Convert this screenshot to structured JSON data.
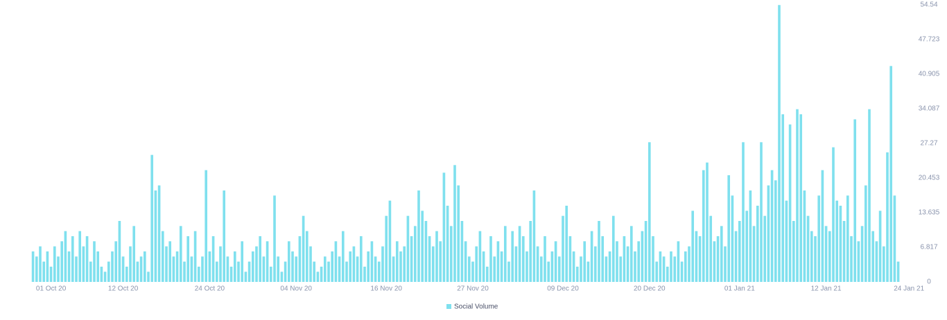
{
  "chart_data": {
    "type": "bar",
    "categories": [
      null,
      null,
      null,
      null,
      null,
      "01 Oct 20",
      null,
      null,
      null,
      null,
      null,
      null,
      null,
      null,
      null,
      null,
      null,
      null,
      null,
      null,
      null,
      null,
      null,
      null,
      null,
      "12 Oct 20",
      null,
      null,
      null,
      null,
      null,
      null,
      null,
      null,
      null,
      null,
      null,
      null,
      null,
      null,
      null,
      null,
      null,
      null,
      null,
      null,
      null,
      null,
      null,
      "24 Oct 20",
      null,
      null,
      null,
      null,
      null,
      null,
      null,
      null,
      null,
      null,
      null,
      null,
      null,
      null,
      null,
      null,
      null,
      null,
      null,
      null,
      null,
      null,
      null,
      "04 Nov 20",
      null,
      null,
      null,
      null,
      null,
      null,
      null,
      null,
      null,
      null,
      null,
      null,
      null,
      null,
      null,
      null,
      null,
      null,
      null,
      null,
      null,
      null,
      null,
      null,
      "16 Nov 20",
      null,
      null,
      null,
      null,
      null,
      null,
      null,
      null,
      null,
      null,
      null,
      null,
      null,
      null,
      null,
      null,
      null,
      null,
      null,
      null,
      null,
      null,
      null,
      "27 Nov 20",
      null,
      null,
      null,
      null,
      null,
      null,
      null,
      null,
      null,
      null,
      null,
      null,
      null,
      null,
      null,
      null,
      null,
      null,
      null,
      null,
      null,
      null,
      null,
      null,
      "09 Dec 20",
      null,
      null,
      null,
      null,
      null,
      null,
      null,
      null,
      null,
      null,
      null,
      null,
      null,
      null,
      null,
      null,
      null,
      null,
      null,
      null,
      null,
      null,
      null,
      "20 Dec 20",
      null,
      null,
      null,
      null,
      null,
      null,
      null,
      null,
      null,
      null,
      null,
      null,
      null,
      null,
      null,
      null,
      null,
      null,
      null,
      null,
      null,
      null,
      null,
      null,
      "01 Jan 21",
      null,
      null,
      null,
      null,
      null,
      null,
      null,
      null,
      null,
      null,
      null,
      null,
      null,
      null,
      null,
      null,
      null,
      null,
      null,
      null,
      null,
      null,
      null,
      "12 Jan 21",
      null,
      null,
      null,
      null,
      null,
      null,
      null,
      null,
      null,
      null,
      null,
      null,
      null,
      null,
      null,
      null,
      null,
      null,
      null,
      null,
      null,
      null,
      "24 Jan 21",
      null
    ],
    "series": [
      {
        "name": "Social Volume",
        "color": "#7fe0ee",
        "values": [
          6,
          5,
          7,
          4,
          6,
          3,
          7,
          5,
          8,
          10,
          6,
          9,
          5,
          10,
          7,
          9,
          4,
          8,
          6,
          3,
          2,
          4,
          6,
          8,
          12,
          5,
          3,
          7,
          11,
          4,
          5,
          6,
          2,
          25,
          18,
          19,
          10,
          7,
          8,
          5,
          6,
          11,
          4,
          9,
          5,
          10,
          3,
          5,
          22,
          6,
          9,
          4,
          7,
          18,
          5,
          3,
          6,
          4,
          8,
          2,
          4,
          6,
          7,
          9,
          5,
          8,
          3,
          17,
          5,
          2,
          4,
          8,
          6,
          5,
          9,
          13,
          10,
          7,
          4,
          2,
          3,
          5,
          4,
          6,
          8,
          5,
          10,
          4,
          6,
          7,
          5,
          9,
          3,
          6,
          8,
          5,
          4,
          7,
          13,
          16,
          5,
          8,
          6,
          7,
          13,
          9,
          11,
          18,
          14,
          12,
          9,
          7,
          10,
          8,
          21.5,
          15,
          11,
          23,
          19,
          12,
          8,
          5,
          4,
          7,
          10,
          6,
          3,
          9,
          5,
          8,
          6,
          11,
          4,
          10,
          7,
          11,
          9,
          6,
          12,
          18,
          7,
          5,
          9,
          4,
          6,
          8,
          5,
          13,
          15,
          9,
          6,
          3,
          5,
          8,
          4,
          10,
          7,
          12,
          9,
          5,
          6,
          13,
          8,
          5,
          9,
          7,
          11,
          6,
          8,
          10,
          12,
          27.5,
          9,
          4,
          6,
          5,
          3,
          6,
          5,
          8,
          4,
          6,
          7,
          14,
          10,
          9,
          22,
          23.5,
          13,
          8,
          9,
          11,
          7,
          21,
          17,
          10,
          12,
          27.5,
          14,
          18,
          11,
          15,
          27.5,
          13,
          19,
          22,
          20,
          54.5,
          33,
          16,
          31,
          12,
          34,
          33,
          18,
          13,
          10,
          9,
          17,
          22,
          11,
          10,
          26.5,
          16,
          15,
          12,
          17,
          9,
          32,
          8,
          11,
          19,
          34,
          10,
          8,
          14,
          7,
          25.5,
          42.5,
          17,
          4,
          null,
          null,
          null,
          null
        ]
      }
    ],
    "ylim": [
      0,
      54.54
    ],
    "yticks": [
      0,
      6.817,
      13.635,
      20.453,
      27.27,
      34.087,
      40.905,
      47.723,
      54.54
    ],
    "legend": "bottom"
  }
}
